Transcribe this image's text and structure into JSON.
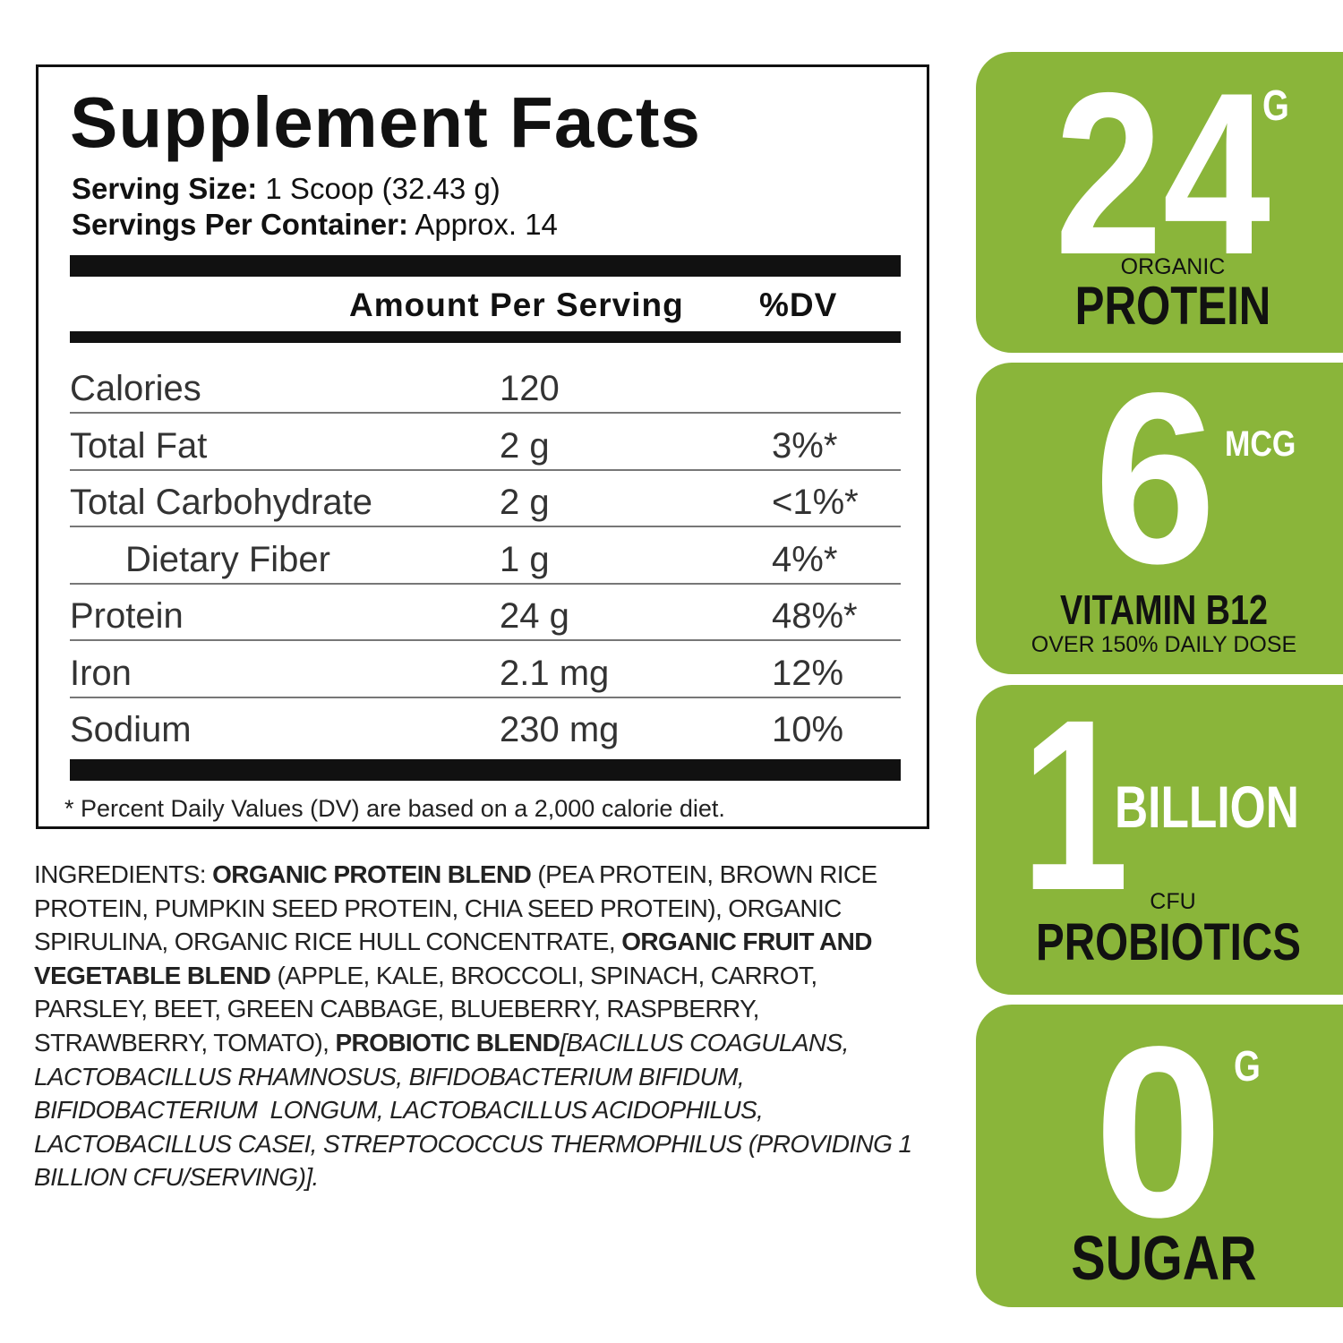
{
  "facts": {
    "title": "Supplement Facts",
    "serving_size_label": "Serving Size:",
    "serving_size": "1 Scoop (32.43 g)",
    "servings_label": "Servings Per Container:",
    "servings": "Approx. 14",
    "amount_header": "Amount Per Serving",
    "dv_header": "%DV",
    "rows": [
      {
        "name": "Calories",
        "amount": "120"
      },
      {
        "name": "Total Fat",
        "amount": "2 g",
        "dv": "3%*"
      },
      {
        "name": "Total Carbohydrate",
        "amount": "2 g",
        "dv": "<1%*"
      },
      {
        "name": "Dietary Fiber",
        "amount": "1 g",
        "dv": "4%*",
        "indent": true
      },
      {
        "name": "Protein",
        "amount": "24 g",
        "dv": "48%*"
      },
      {
        "name": "Iron",
        "amount": "2.1 mg",
        "dv": "12%"
      },
      {
        "name": "Sodium",
        "amount": "230 mg",
        "dv": "10%"
      }
    ],
    "footnote": "* Percent Daily Values (DV) are based on a 2,000 calorie diet."
  },
  "ingredients": [
    {
      "text": "INGREDIENTS: ",
      "style": "normal"
    },
    {
      "text": "ORGANIC PROTEIN BLEND",
      "style": "bold"
    },
    {
      "text": " (PEA PROTEIN, BROWN RICE PROTEIN, PUMPKIN SEED PROTEIN, CHIA SEED PROTEIN), ORGANIC SPIRULINA, ORGANIC RICE HULL CONCENTRATE, ",
      "style": "normal"
    },
    {
      "text": "ORGANIC FRUIT AND VEGETABLE BLEND",
      "style": "bold"
    },
    {
      "text": " (APPLE, KALE, BROCCOLI, SPINACH, CARROT, PARSLEY, BEET, GREEN CABBAGE, BLUEBERRY, RASPBERRY, STRAWBERRY, TOMATO), ",
      "style": "normal"
    },
    {
      "text": "PROBIOTIC BLEND",
      "style": "bold"
    },
    {
      "text": "[BACILLUS COAGULANS, LACTOBACILLUS RHAMNOSUS, BIFIDOBACTERIUM BIFIDUM, BIFIDOBACTERIUM  LONGUM, LACTOBACILLUS ACIDOPHILUS, LACTOBACILLUS CASEI, STREPTOCOCCUS THERMOPHILUS (PROVIDING 1 BILLION CFU/SERVING)].",
      "style": "italic"
    }
  ],
  "badges": [
    {
      "number": "24",
      "unit": "G",
      "small": "ORGANIC",
      "main": "PROTEIN"
    },
    {
      "number": "6",
      "unit": "MCG",
      "main": "VITAMIN B12",
      "note": "OVER 150% DAILY DOSE"
    },
    {
      "number": "1",
      "unit": "BILLION",
      "small": "CFU",
      "main": "PROBIOTICS"
    },
    {
      "number": "0",
      "unit": "G",
      "main": "SUGAR"
    }
  ]
}
